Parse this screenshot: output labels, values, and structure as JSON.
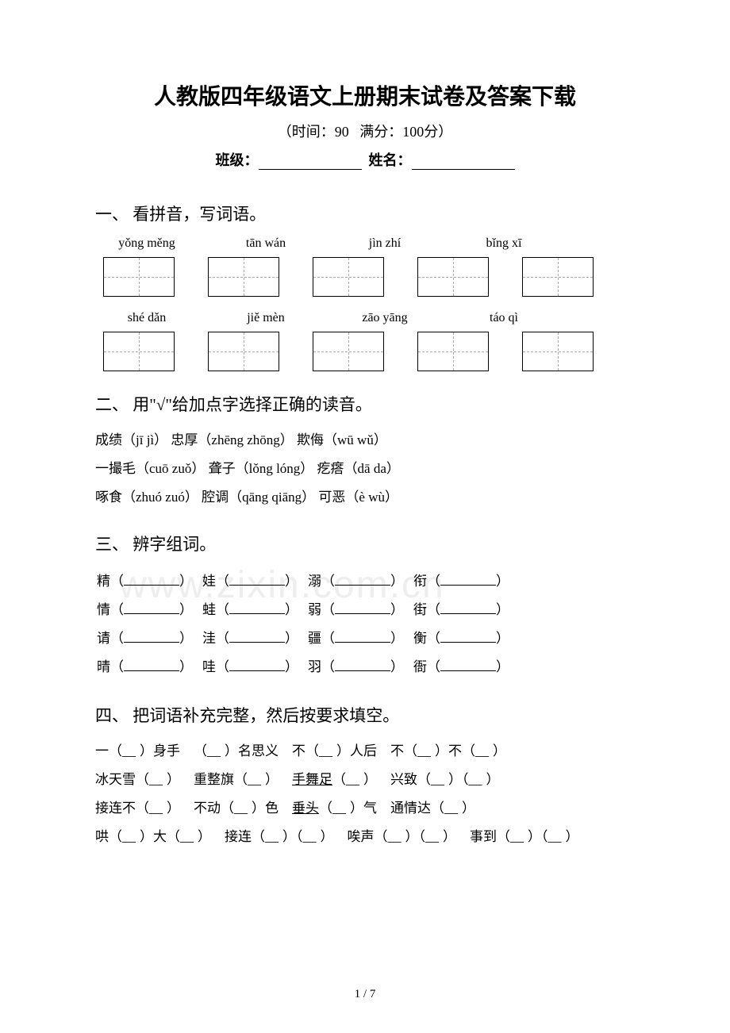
{
  "header": {
    "title": "人教版四年级语文上册期末试卷及答案下载",
    "subtitle_prefix": "（时间：90",
    "subtitle_suffix": "满分：100分）",
    "class_label": "班级：",
    "name_label": "姓名："
  },
  "section1": {
    "header": "一、 看拼音，写词语。",
    "row1": [
      "yǒng měng",
      "tān wán",
      "jìn zhí",
      "bǐng xī"
    ],
    "row2": [
      "shé dǎn",
      "jiě mèn",
      "zāo yāng",
      "táo qì"
    ]
  },
  "section2": {
    "header": "二、 用\"√\"给加点字选择正确的读音。",
    "lines": [
      "成绩（jī   jì）      忠厚（zhēng zhōng）     欺侮（wū wǔ）",
      "一撮毛（cuō zuǒ）    聋子（lǒng lóng）        疙瘩（dā da）",
      "啄食（zhuó zuó）    腔调（qāng   qiāng）     可恶（è wù）"
    ]
  },
  "section3": {
    "header": "三、 辨字组词。",
    "rows": [
      [
        "精",
        "娃",
        "溺",
        "衔"
      ],
      [
        "情",
        "蛙",
        "弱",
        "街"
      ],
      [
        "请",
        "洼",
        "疆",
        "衡"
      ],
      [
        "晴",
        "哇",
        "羽",
        "衙"
      ]
    ]
  },
  "section4": {
    "header": "四、 把词语补充完整，然后按要求填空。",
    "lines": [
      [
        "一（__）身手",
        "（__）名思义",
        "不（__）人后",
        "不（__）不（__）"
      ],
      [
        "冰天雪（__）",
        "重整旗（__）",
        "手舞足（__）",
        "兴致（__）（__）"
      ],
      [
        "接连不（__）",
        "不动（__）色",
        "垂头（__）气",
        "通情达（__）"
      ],
      [
        "哄（__）大（__）",
        "接连（__）（__）",
        "唉声（__）（__）",
        "事到（__）（__）"
      ]
    ],
    "underline_items": [
      "手舞足",
      "垂头"
    ]
  },
  "footer": {
    "page": "1 / 7"
  },
  "watermark": "www.zixin.com.cn"
}
